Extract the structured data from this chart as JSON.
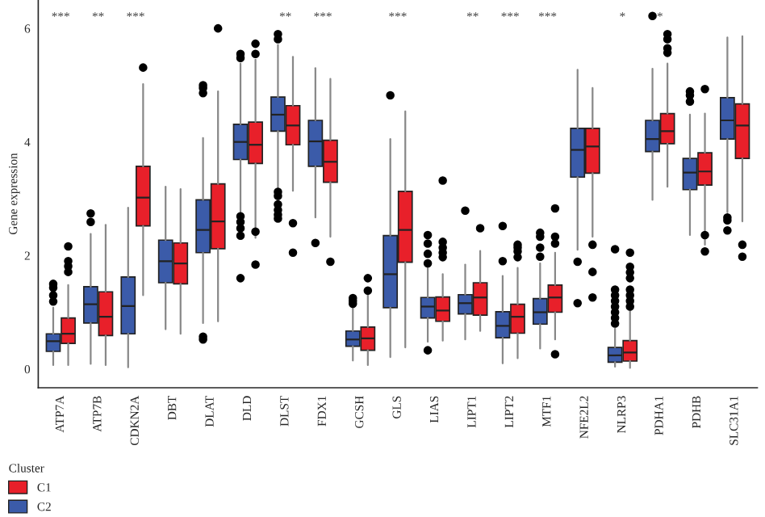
{
  "chart_data": {
    "type": "box",
    "ylabel": "Gene expression",
    "legend_title": "Cluster",
    "legend": "bottom left",
    "grid": false,
    "categories": [
      "ATP7A",
      "ATP7B",
      "CDKN2A",
      "DBT",
      "DLAT",
      "DLD",
      "DLST",
      "FDX1",
      "GCSH",
      "GLS",
      "LIAS",
      "LIPT1",
      "LIPT2",
      "MTF1",
      "NFE2L2",
      "NLRP3",
      "PDHA1",
      "PDHB",
      "SLC31A1"
    ],
    "ylim": [
      -0.33,
      6.5
    ],
    "yticks": [
      0,
      2,
      4,
      6
    ],
    "series": [
      {
        "name": "C2",
        "color": "#3b5ba9",
        "boxes": [
          {
            "low": 0.07,
            "q1": 0.31,
            "median": 0.49,
            "q3": 0.62,
            "high": 1.08,
            "outliers": [
              1.19,
              1.3,
              1.43,
              1.5
            ]
          },
          {
            "low": 0.09,
            "q1": 0.81,
            "median": 1.14,
            "q3": 1.45,
            "high": 2.38,
            "outliers": [
              2.59,
              2.74
            ]
          },
          {
            "low": 0.03,
            "q1": 0.62,
            "median": 1.11,
            "q3": 1.62,
            "high": 2.84
          },
          {
            "low": 0.7,
            "q1": 1.52,
            "median": 1.9,
            "q3": 2.27,
            "high": 3.21
          },
          {
            "low": 0.81,
            "q1": 2.05,
            "median": 2.45,
            "q3": 2.98,
            "high": 4.07,
            "outliers": [
              0.52,
              0.57,
              4.86,
              4.95,
              5.0
            ]
          },
          {
            "low": 2.43,
            "q1": 3.69,
            "median": 4.0,
            "q3": 4.31,
            "high": 5.38,
            "outliers": [
              1.6,
              2.35,
              2.48,
              2.59,
              2.69,
              5.48,
              5.55
            ]
          },
          {
            "low": 2.81,
            "q1": 4.19,
            "median": 4.48,
            "q3": 4.79,
            "high": 5.71,
            "outliers": [
              2.65,
              2.72,
              2.8,
              2.9,
              3.05,
              3.12,
              5.81,
              5.9
            ]
          },
          {
            "low": 2.67,
            "q1": 3.57,
            "median": 4.01,
            "q3": 4.38,
            "high": 5.3,
            "outliers": [
              2.22
            ]
          },
          {
            "low": 0.15,
            "q1": 0.4,
            "median": 0.52,
            "q3": 0.67,
            "high": 1.08,
            "outliers": [
              1.15,
              1.2,
              1.25
            ]
          },
          {
            "low": 0.21,
            "q1": 1.08,
            "median": 1.67,
            "q3": 2.35,
            "high": 4.05,
            "outliers": [
              4.82
            ]
          },
          {
            "low": 0.48,
            "q1": 0.9,
            "median": 1.1,
            "q3": 1.26,
            "high": 1.79,
            "outliers": [
              0.33,
              1.86,
              2.03,
              2.21,
              2.36
            ]
          },
          {
            "low": 0.52,
            "q1": 0.97,
            "median": 1.16,
            "q3": 1.31,
            "high": 1.84,
            "outliers": [
              2.79
            ]
          },
          {
            "low": 0.1,
            "q1": 0.55,
            "median": 0.76,
            "q3": 1.01,
            "high": 1.64,
            "outliers": [
              1.9,
              2.52
            ]
          },
          {
            "low": 0.36,
            "q1": 0.79,
            "median": 1.0,
            "q3": 1.24,
            "high": 1.86,
            "outliers": [
              1.98,
              2.14,
              2.33,
              2.4
            ]
          },
          {
            "low": 2.1,
            "q1": 3.38,
            "median": 3.86,
            "q3": 4.24,
            "high": 5.27,
            "outliers": [
              1.16,
              1.89
            ]
          },
          {
            "low": 0.04,
            "q1": 0.12,
            "median": 0.24,
            "q3": 0.38,
            "high": 0.71,
            "outliers": [
              0.8,
              0.9,
              1.0,
              1.1,
              1.2,
              1.3,
              1.4,
              2.11
            ]
          },
          {
            "low": 2.98,
            "q1": 3.83,
            "median": 4.05,
            "q3": 4.38,
            "high": 5.29,
            "outliers": [
              6.22
            ]
          },
          {
            "low": 2.36,
            "q1": 3.16,
            "median": 3.46,
            "q3": 3.71,
            "high": 4.48,
            "outliers": [
              4.71,
              4.82,
              4.89
            ]
          },
          {
            "low": 2.76,
            "q1": 4.05,
            "median": 4.38,
            "q3": 4.78,
            "high": 5.84,
            "outliers": [
              2.44,
              2.62,
              2.67
            ]
          }
        ]
      },
      {
        "name": "C1",
        "color": "#e8202a",
        "boxes": [
          {
            "low": 0.07,
            "q1": 0.45,
            "median": 0.62,
            "q3": 0.9,
            "high": 1.48,
            "outliers": [
              1.71,
              1.81,
              1.9,
              2.16
            ]
          },
          {
            "low": 0.07,
            "q1": 0.59,
            "median": 0.92,
            "q3": 1.36,
            "high": 2.54
          },
          {
            "low": 1.3,
            "q1": 2.52,
            "median": 3.02,
            "q3": 3.57,
            "high": 5.02,
            "outliers": [
              5.31
            ]
          },
          {
            "low": 0.62,
            "q1": 1.5,
            "median": 1.86,
            "q3": 2.22,
            "high": 3.17
          },
          {
            "low": 0.84,
            "q1": 2.12,
            "median": 2.6,
            "q3": 3.26,
            "high": 4.89,
            "outliers": [
              6.0
            ]
          },
          {
            "low": 2.31,
            "q1": 3.62,
            "median": 3.95,
            "q3": 4.35,
            "high": 5.45,
            "outliers": [
              1.84,
              2.42,
              5.55,
              5.73
            ]
          },
          {
            "low": 3.14,
            "q1": 3.95,
            "median": 4.29,
            "q3": 4.64,
            "high": 5.5,
            "outliers": [
              2.05,
              2.57
            ]
          },
          {
            "low": 2.33,
            "q1": 3.29,
            "median": 3.65,
            "q3": 4.03,
            "high": 5.11,
            "outliers": [
              1.89
            ]
          },
          {
            "low": 0.07,
            "q1": 0.33,
            "median": 0.54,
            "q3": 0.74,
            "high": 1.33,
            "outliers": [
              1.38,
              1.6
            ]
          },
          {
            "low": 0.38,
            "q1": 1.88,
            "median": 2.45,
            "q3": 3.13,
            "high": 4.54
          },
          {
            "low": 0.5,
            "q1": 0.84,
            "median": 1.03,
            "q3": 1.27,
            "high": 1.67,
            "outliers": [
              1.97,
              2.05,
              2.14,
              2.24,
              3.32
            ]
          },
          {
            "low": 0.67,
            "q1": 0.95,
            "median": 1.26,
            "q3": 1.52,
            "high": 2.08,
            "outliers": [
              2.48
            ]
          },
          {
            "low": 0.19,
            "q1": 0.63,
            "median": 0.92,
            "q3": 1.14,
            "high": 1.78,
            "outliers": [
              1.97,
              2.07,
              2.14,
              2.19
            ]
          },
          {
            "low": 0.52,
            "q1": 1.0,
            "median": 1.26,
            "q3": 1.48,
            "high": 2.05,
            "outliers": [
              0.26,
              2.21,
              2.33,
              2.83
            ]
          },
          {
            "low": 2.33,
            "q1": 3.45,
            "median": 3.92,
            "q3": 4.24,
            "high": 4.95,
            "outliers": [
              1.26,
              1.71,
              2.19
            ]
          },
          {
            "low": 0.02,
            "q1": 0.14,
            "median": 0.29,
            "q3": 0.5,
            "high": 1.05,
            "outliers": [
              1.1,
              1.2,
              1.3,
              1.4,
              1.6,
              1.7,
              1.8,
              2.05
            ]
          },
          {
            "low": 3.21,
            "q1": 3.97,
            "median": 4.19,
            "q3": 4.5,
            "high": 5.38,
            "outliers": [
              5.57,
              5.65,
              5.81,
              5.9
            ]
          },
          {
            "low": 2.19,
            "q1": 3.24,
            "median": 3.48,
            "q3": 3.81,
            "high": 4.5,
            "outliers": [
              2.07,
              2.36,
              4.93
            ]
          },
          {
            "low": 2.6,
            "q1": 3.71,
            "median": 4.29,
            "q3": 4.67,
            "high": 5.86,
            "outliers": [
              1.98,
              2.19
            ]
          }
        ]
      }
    ],
    "annotations": [
      "***",
      "**",
      "***",
      null,
      null,
      null,
      "**",
      "***",
      null,
      "***",
      null,
      "**",
      "***",
      "***",
      null,
      "*",
      "*",
      null,
      null
    ]
  }
}
